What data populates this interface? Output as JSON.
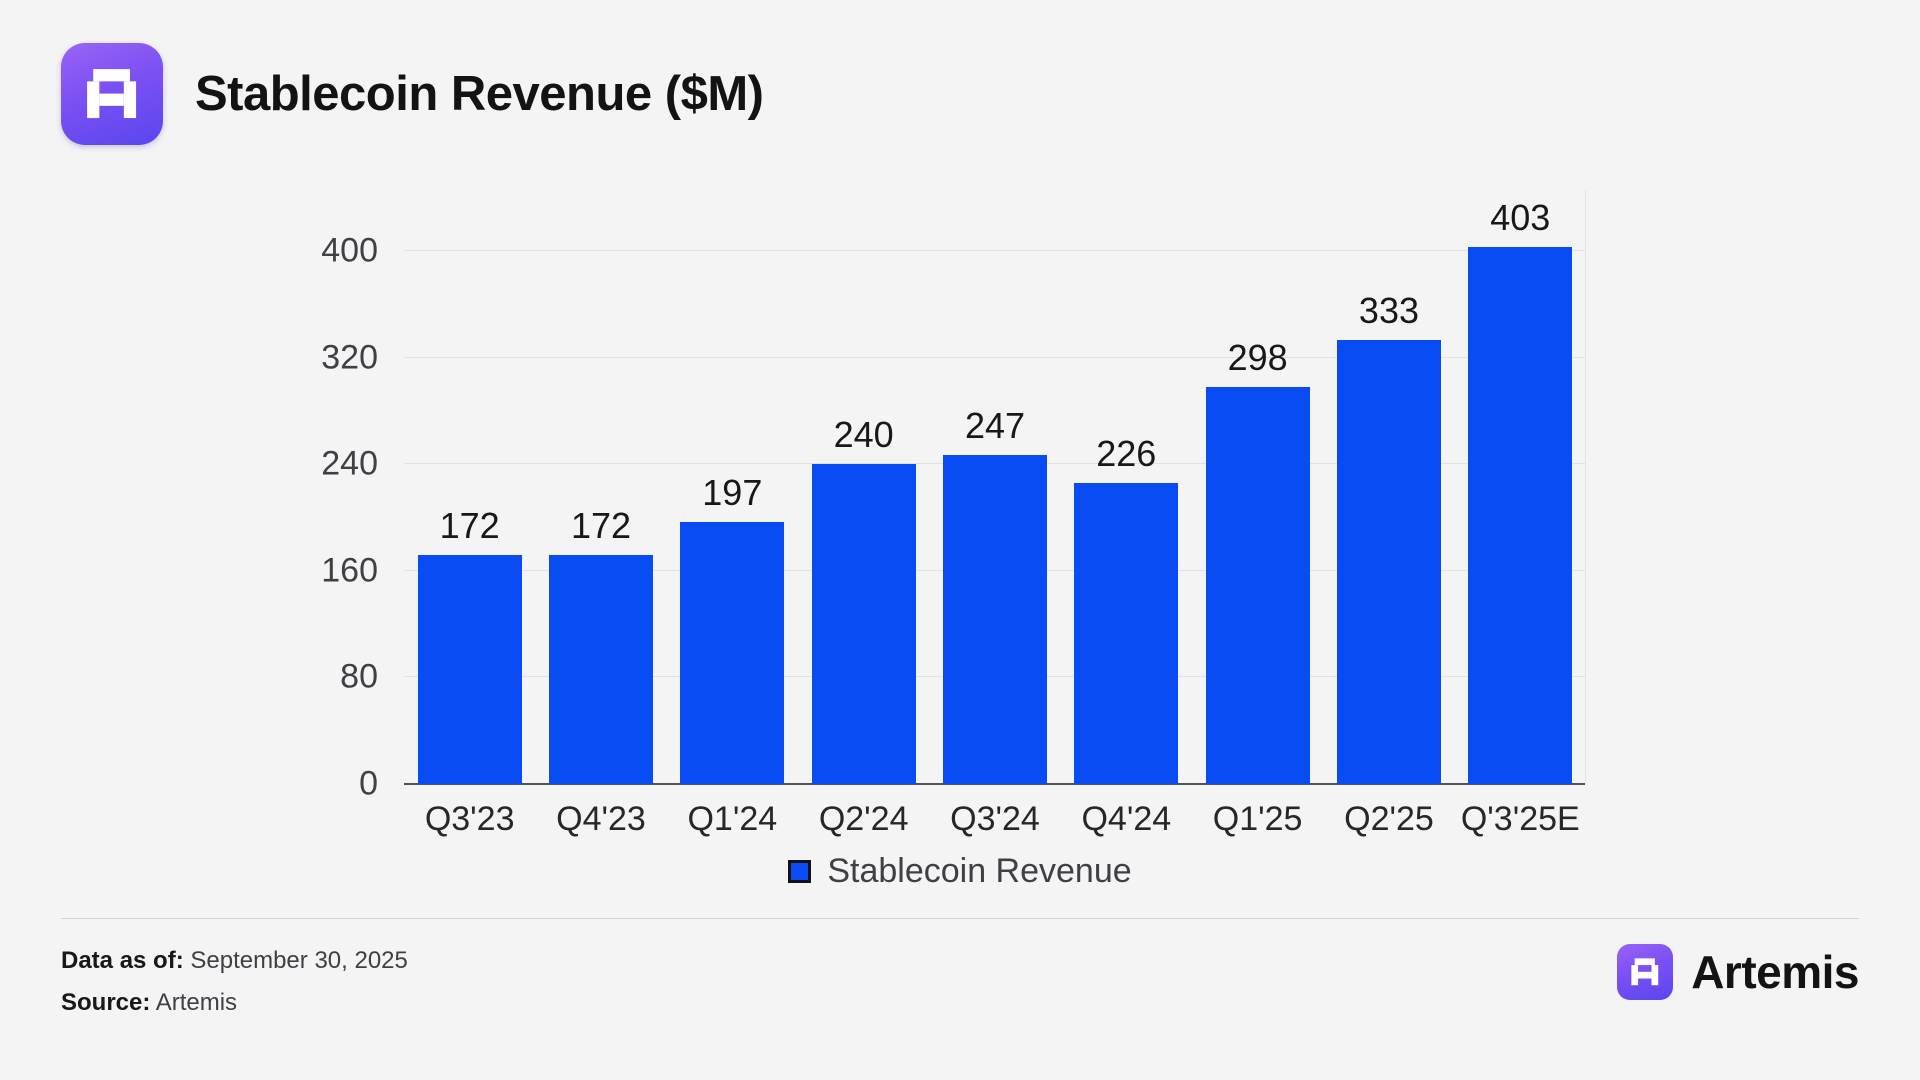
{
  "page": {
    "title": "Stablecoin Revenue ($M)",
    "footer": {
      "data_as_of_label": "Data as of:",
      "data_as_of_value": " September 30, 2025",
      "source_label": "Source:",
      "source_value": " Artemis"
    },
    "brand": {
      "wordmark": "Artemis"
    },
    "colors": {
      "bar": "#0a4cf4",
      "background": "#f4f4f5",
      "logo_gradient_start": "#9a63f6",
      "logo_gradient_end": "#5a46ef"
    }
  },
  "chart_data": {
    "type": "bar",
    "title": "Stablecoin Revenue ($M)",
    "categories": [
      "Q3'23",
      "Q4'23",
      "Q1'24",
      "Q2'24",
      "Q3'24",
      "Q4'24",
      "Q1'25",
      "Q2'25",
      "Q'3'25E"
    ],
    "values": [
      172,
      172,
      197,
      240,
      247,
      226,
      298,
      333,
      403
    ],
    "series_name": "Stablecoin Revenue",
    "xlabel": "",
    "ylabel": "",
    "ylim": [
      0,
      440
    ],
    "yticks": [
      0,
      80,
      160,
      240,
      320,
      400
    ],
    "grid": true,
    "legend_position": "bottom",
    "bar_color": "#0a4cf4"
  }
}
